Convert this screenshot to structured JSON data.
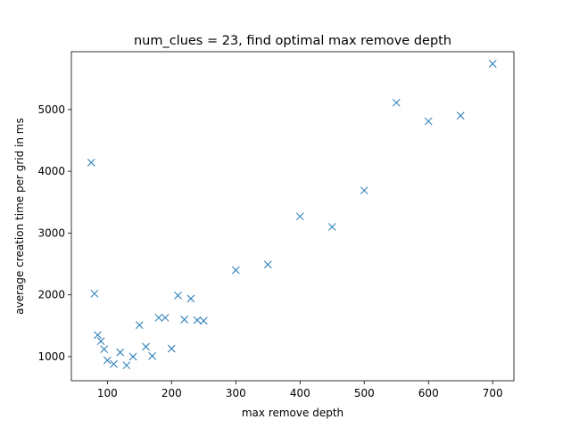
{
  "chart_data": {
    "type": "scatter",
    "title": "num_clues = 23, find optimal max remove depth",
    "xlabel": "max remove depth",
    "ylabel": "average creation time per grid in ms",
    "xlim": [
      44,
      733
    ],
    "ylim": [
      610,
      5935
    ],
    "xticks": [
      100,
      200,
      300,
      400,
      500,
      600,
      700
    ],
    "yticks": [
      1000,
      2000,
      3000,
      4000,
      5000
    ],
    "grid": false,
    "marker": "x",
    "color": "#1f77b4",
    "series": [
      {
        "points": [
          {
            "x": 75,
            "y": 4140
          },
          {
            "x": 80,
            "y": 2020
          },
          {
            "x": 85,
            "y": 1350
          },
          {
            "x": 90,
            "y": 1250
          },
          {
            "x": 95,
            "y": 1120
          },
          {
            "x": 100,
            "y": 940
          },
          {
            "x": 110,
            "y": 880
          },
          {
            "x": 120,
            "y": 1070
          },
          {
            "x": 130,
            "y": 860
          },
          {
            "x": 140,
            "y": 1000
          },
          {
            "x": 150,
            "y": 1510
          },
          {
            "x": 160,
            "y": 1160
          },
          {
            "x": 170,
            "y": 1010
          },
          {
            "x": 180,
            "y": 1630
          },
          {
            "x": 190,
            "y": 1630
          },
          {
            "x": 200,
            "y": 1130
          },
          {
            "x": 210,
            "y": 1990
          },
          {
            "x": 220,
            "y": 1600
          },
          {
            "x": 230,
            "y": 1940
          },
          {
            "x": 240,
            "y": 1590
          },
          {
            "x": 250,
            "y": 1580
          },
          {
            "x": 300,
            "y": 2400
          },
          {
            "x": 350,
            "y": 2490
          },
          {
            "x": 400,
            "y": 3270
          },
          {
            "x": 450,
            "y": 3100
          },
          {
            "x": 500,
            "y": 3690
          },
          {
            "x": 550,
            "y": 5110
          },
          {
            "x": 600,
            "y": 4810
          },
          {
            "x": 650,
            "y": 4900
          },
          {
            "x": 700,
            "y": 5740
          }
        ]
      }
    ]
  }
}
